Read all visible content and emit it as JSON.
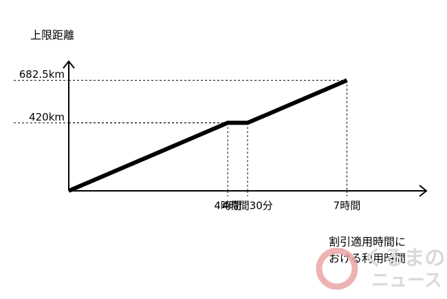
{
  "chart_data": {
    "type": "line",
    "y_label": "上限距離",
    "x_label": [
      "割引適用時間に",
      "おける利用時間"
    ],
    "x": [
      0,
      4,
      4.5,
      7
    ],
    "series": [
      {
        "color": "#000000",
        "values": [
          0,
          420,
          420,
          682.5
        ]
      }
    ],
    "xlim": [
      0,
      9
    ],
    "ylim": [
      0,
      800
    ],
    "xticks": [
      {
        "value": 4,
        "label": "4時間"
      },
      {
        "value": 4.5,
        "label": "4時間30分"
      },
      {
        "value": 7,
        "label": "7時間"
      }
    ],
    "yticks": [
      {
        "value": 420,
        "label": "420km"
      },
      {
        "value": 682.5,
        "label": "682.5km"
      }
    ],
    "watermark": [
      "くるまの",
      "ニュース"
    ]
  }
}
